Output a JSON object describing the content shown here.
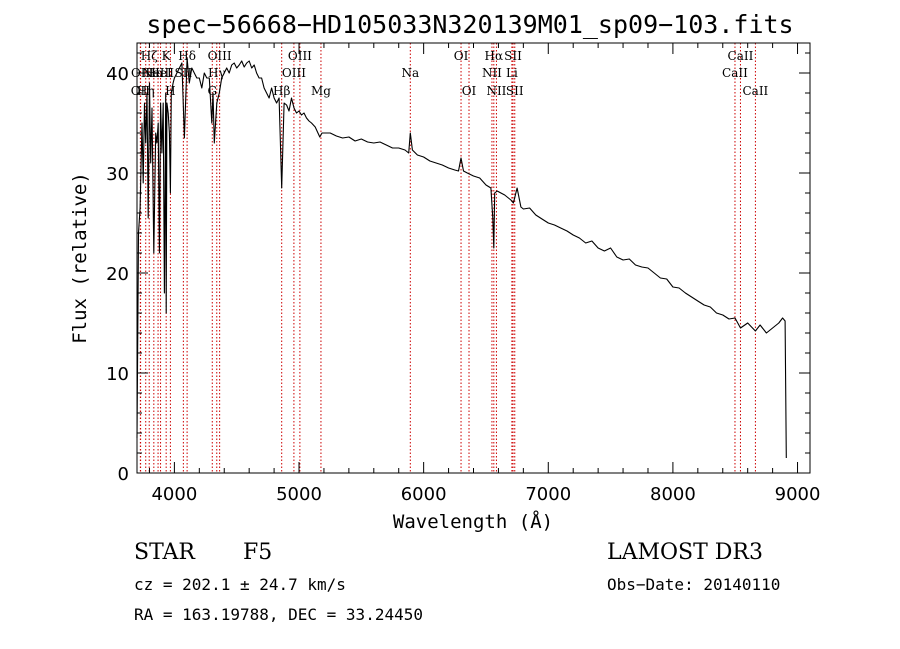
{
  "chart_data": {
    "type": "line",
    "title": "spec−56668−HD105033N320139M01_sp09−103.fits",
    "xlabel": "Wavelength (Å)",
    "ylabel": "Flux (relative)",
    "xlim": [
      3700,
      9100
    ],
    "ylim": [
      0,
      43
    ],
    "xticks": [
      4000,
      5000,
      6000,
      7000,
      8000,
      9000
    ],
    "xtick_labels": [
      "4000",
      "5000",
      "6000",
      "7000",
      "8000",
      "9000"
    ],
    "yticks": [
      0,
      10,
      20,
      30,
      40
    ],
    "ytick_labels": [
      "0",
      "10",
      "20",
      "30",
      "40"
    ],
    "grid": false,
    "series": [
      {
        "name": "spectrum",
        "x": [
          3700,
          3712,
          3725,
          3740,
          3750,
          3760,
          3770,
          3780,
          3790,
          3800,
          3810,
          3820,
          3835,
          3850,
          3860,
          3870,
          3880,
          3889,
          3900,
          3910,
          3920,
          3930,
          3934,
          3940,
          3950,
          3960,
          3968,
          3975,
          3990,
          4000,
          4020,
          4040,
          4060,
          4080,
          4102,
          4120,
          4140,
          4160,
          4180,
          4200,
          4220,
          4240,
          4260,
          4280,
          4300,
          4310,
          4320,
          4340,
          4360,
          4380,
          4400,
          4420,
          4440,
          4460,
          4480,
          4500,
          4520,
          4540,
          4560,
          4580,
          4600,
          4620,
          4640,
          4660,
          4680,
          4700,
          4720,
          4740,
          4760,
          4780,
          4800,
          4820,
          4840,
          4861,
          4880,
          4900,
          4920,
          4940,
          4960,
          4980,
          5000,
          5020,
          5040,
          5060,
          5080,
          5100,
          5130,
          5167,
          5184,
          5200,
          5250,
          5300,
          5350,
          5400,
          5450,
          5500,
          5550,
          5600,
          5650,
          5700,
          5750,
          5800,
          5850,
          5880,
          5893,
          5910,
          5950,
          6000,
          6050,
          6100,
          6150,
          6200,
          6250,
          6280,
          6300,
          6320,
          6350,
          6400,
          6450,
          6500,
          6540,
          6555,
          6563,
          6570,
          6590,
          6620,
          6650,
          6680,
          6700,
          6720,
          6750,
          6780,
          6800,
          6850,
          6900,
          6950,
          7000,
          7050,
          7100,
          7150,
          7200,
          7250,
          7300,
          7350,
          7400,
          7450,
          7500,
          7550,
          7600,
          7650,
          7700,
          7750,
          7800,
          7850,
          7900,
          7950,
          8000,
          8050,
          8100,
          8150,
          8200,
          8250,
          8300,
          8350,
          8400,
          8450,
          8498,
          8542,
          8600,
          8662,
          8700,
          8750,
          8800,
          8850,
          8880,
          8900,
          8910
        ],
        "values": [
          3.5,
          24,
          26.5,
          35,
          29,
          37,
          33,
          38,
          25.5,
          39,
          31,
          36.5,
          22,
          34,
          33,
          35,
          22,
          37,
          32,
          37,
          18,
          38,
          16,
          37,
          36,
          34,
          28,
          38,
          39,
          39.5,
          40,
          40.5,
          41,
          33.5,
          41.5,
          39,
          40.5,
          40,
          39.5,
          39.5,
          38.5,
          40,
          39.5,
          39.5,
          35,
          38,
          33,
          37,
          38,
          39.5,
          40,
          40.5,
          40,
          40.8,
          41,
          40.5,
          40.8,
          41.2,
          40.6,
          41,
          41.2,
          40.5,
          40.8,
          40,
          39.5,
          39.5,
          38.5,
          38,
          37.5,
          38.5,
          37.5,
          37,
          37.5,
          28.5,
          37,
          36.8,
          36.2,
          37.5,
          36.5,
          36,
          36.2,
          35.8,
          36,
          35.5,
          35.2,
          35,
          34.6,
          33.6,
          34,
          34,
          34,
          33.7,
          33.5,
          33.6,
          33.2,
          33.4,
          33.1,
          33,
          33.1,
          32.8,
          32.5,
          32.5,
          32.3,
          32,
          34,
          32.3,
          31.8,
          31.6,
          31.2,
          31,
          30.8,
          30.5,
          30.3,
          30.2,
          31.5,
          30.2,
          30,
          29.7,
          29.5,
          28.8,
          28.5,
          25.5,
          22.5,
          28,
          28.2,
          28,
          27.8,
          27.5,
          27.3,
          27,
          28.5,
          26.6,
          26.4,
          26.5,
          25.8,
          25.4,
          25,
          24.8,
          24.5,
          24.2,
          23.8,
          23.5,
          23,
          23.2,
          22.5,
          22.2,
          22.5,
          21.6,
          21.3,
          21.4,
          20.8,
          20.6,
          20.5,
          20,
          19.5,
          19.4,
          18.6,
          18.5,
          18,
          17.6,
          17.2,
          16.8,
          16.6,
          16,
          15.8,
          15.4,
          15.5,
          14.5,
          15,
          14.2,
          14.8,
          14,
          14.5,
          15,
          15.5,
          15.2,
          1.5
        ]
      }
    ],
    "lines": [
      {
        "wave": 3727,
        "label": "OII",
        "row": 2
      },
      {
        "wave": 3729,
        "label": "OII",
        "row": 1
      },
      {
        "wave": 3770,
        "label": "Hη",
        "row": 2
      },
      {
        "wave": 3798,
        "label": "Hζ",
        "row": 0
      },
      {
        "wave": 3835,
        "label": "Hε",
        "row": 1
      },
      {
        "wave": 3869,
        "label": "NeIII",
        "row": 1
      },
      {
        "wave": 3889,
        "label": "HeI",
        "row": 1
      },
      {
        "wave": 3934,
        "label": "K",
        "row": 0
      },
      {
        "wave": 3968,
        "label": "H",
        "row": 2
      },
      {
        "wave": 4072,
        "label": "SII",
        "row": 1
      },
      {
        "wave": 4102,
        "label": "Hδ",
        "row": 0
      },
      {
        "wave": 4304,
        "label": "G",
        "row": 2
      },
      {
        "wave": 4340,
        "label": "Hγ",
        "row": 1
      },
      {
        "wave": 4363,
        "label": "OIII",
        "row": 0
      },
      {
        "wave": 4861,
        "label": "Hβ",
        "row": 2
      },
      {
        "wave": 4959,
        "label": "OIII",
        "row": 1
      },
      {
        "wave": 5007,
        "label": "OIII",
        "row": 0
      },
      {
        "wave": 5176,
        "label": "Mg",
        "row": 2
      },
      {
        "wave": 5893,
        "label": "Na",
        "row": 1
      },
      {
        "wave": 6300,
        "label": "OI",
        "row": 0
      },
      {
        "wave": 6364,
        "label": "OI",
        "row": 2
      },
      {
        "wave": 6548,
        "label": "NII",
        "row": 1
      },
      {
        "wave": 6563,
        "label": "Hα",
        "row": 0
      },
      {
        "wave": 6584,
        "label": "NII",
        "row": 2
      },
      {
        "wave": 6708,
        "label": "Li",
        "row": 1
      },
      {
        "wave": 6717,
        "label": "SII",
        "row": 0
      },
      {
        "wave": 6731,
        "label": "SII",
        "row": 2
      },
      {
        "wave": 8498,
        "label": "CaII",
        "row": 1
      },
      {
        "wave": 8542,
        "label": "CaII",
        "row": 0
      },
      {
        "wave": 8662,
        "label": "CaII",
        "row": 2
      }
    ],
    "line_color": "#cc0000"
  },
  "info": {
    "object_class": "STAR",
    "subclass": "F5",
    "survey": "LAMOST DR3",
    "cz": "cz = 202.1 ± 24.7 km/s",
    "obs_date": "Obs−Date: 20140110",
    "coords": "RA = 163.19788, DEC =  33.24450"
  }
}
